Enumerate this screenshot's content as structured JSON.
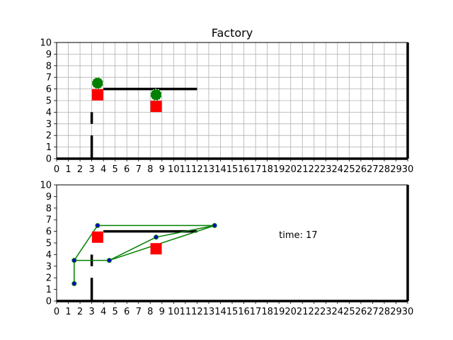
{
  "chart_data": [
    {
      "type": "scatter",
      "title": "Factory",
      "xlabel": "",
      "ylabel": "",
      "xlim": [
        0,
        30
      ],
      "ylim": [
        0,
        10
      ],
      "grid": true,
      "xticks": [
        0,
        1,
        2,
        3,
        4,
        5,
        6,
        7,
        8,
        9,
        10,
        11,
        12,
        13,
        14,
        15,
        16,
        17,
        18,
        19,
        20,
        21,
        22,
        23,
        24,
        25,
        26,
        27,
        28,
        29,
        30
      ],
      "yticks": [
        0,
        1,
        2,
        3,
        4,
        5,
        6,
        7,
        8,
        9,
        10
      ],
      "walls": [
        {
          "x": [
            0,
            30
          ],
          "y": [
            0,
            0
          ]
        },
        {
          "x": [
            30,
            30
          ],
          "y": [
            0,
            10
          ]
        },
        {
          "x": [
            3,
            3
          ],
          "y": [
            0,
            2
          ]
        },
        {
          "x": [
            3,
            3
          ],
          "y": [
            3,
            4
          ]
        },
        {
          "x": [
            4,
            12
          ],
          "y": [
            6,
            6
          ]
        }
      ],
      "machines": [
        {
          "x": 3.5,
          "y": 5.5,
          "color": "#ff0000"
        },
        {
          "x": 8.5,
          "y": 4.5,
          "color": "#ff0000"
        }
      ],
      "robots": [
        {
          "x": 3.5,
          "y": 6.5,
          "color": "#008000"
        },
        {
          "x": 8.5,
          "y": 5.5,
          "color": "#008000"
        }
      ]
    },
    {
      "type": "line",
      "title": "",
      "xlabel": "",
      "ylabel": "",
      "xlim": [
        0,
        30
      ],
      "ylim": [
        0,
        10
      ],
      "grid": false,
      "xticks": [
        0,
        1,
        2,
        3,
        4,
        5,
        6,
        7,
        8,
        9,
        10,
        11,
        12,
        13,
        14,
        15,
        16,
        17,
        18,
        19,
        20,
        21,
        22,
        23,
        24,
        25,
        26,
        27,
        28,
        29,
        30
      ],
      "yticks": [
        0,
        1,
        2,
        3,
        4,
        5,
        6,
        7,
        8,
        9,
        10
      ],
      "walls": [
        {
          "x": [
            0,
            30
          ],
          "y": [
            0,
            0
          ]
        },
        {
          "x": [
            30,
            30
          ],
          "y": [
            0,
            10
          ]
        },
        {
          "x": [
            3,
            3
          ],
          "y": [
            0,
            2
          ]
        },
        {
          "x": [
            3,
            3
          ],
          "y": [
            3,
            4
          ]
        },
        {
          "x": [
            4,
            12
          ],
          "y": [
            6,
            6
          ]
        }
      ],
      "machines": [
        {
          "x": 3.5,
          "y": 5.5,
          "color": "#ff0000"
        },
        {
          "x": 8.5,
          "y": 4.5,
          "color": "#ff0000"
        }
      ],
      "nodes": [
        {
          "x": 1.5,
          "y": 1.5
        },
        {
          "x": 1.5,
          "y": 3.5
        },
        {
          "x": 3.5,
          "y": 6.5
        },
        {
          "x": 4.5,
          "y": 3.5
        },
        {
          "x": 8.5,
          "y": 5.5
        },
        {
          "x": 13.5,
          "y": 6.5
        }
      ],
      "edges": [
        [
          0,
          1
        ],
        [
          1,
          2
        ],
        [
          1,
          3
        ],
        [
          2,
          5
        ],
        [
          3,
          4
        ],
        [
          4,
          5
        ],
        [
          3,
          5
        ]
      ],
      "edge_color": "#008000",
      "node_color": "#0000cc",
      "annotation": {
        "text": "time: 17",
        "x": 19,
        "y": 5
      }
    }
  ]
}
